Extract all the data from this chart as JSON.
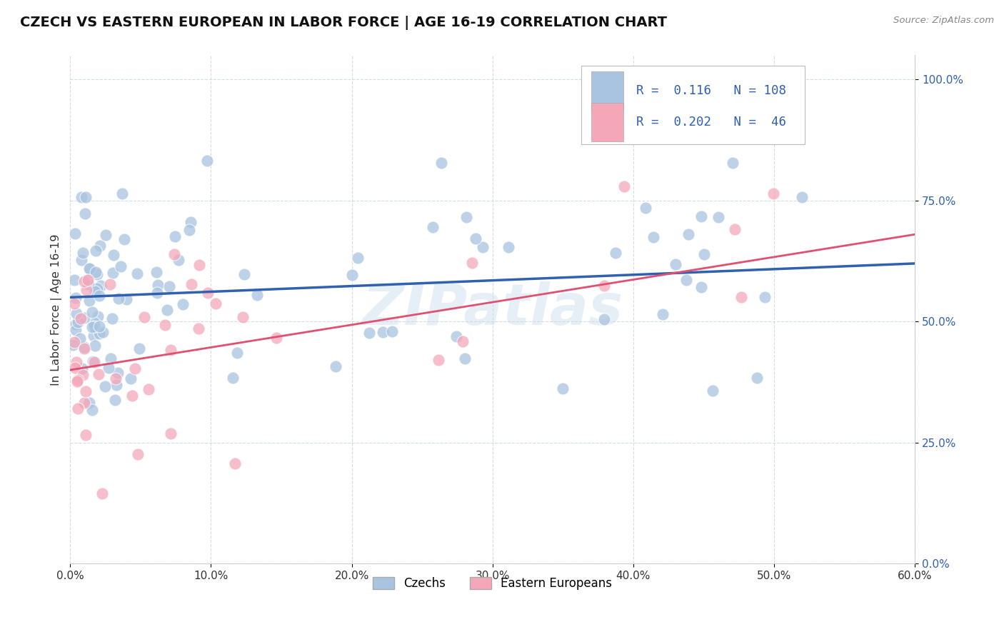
{
  "title": "CZECH VS EASTERN EUROPEAN IN LABOR FORCE | AGE 16-19 CORRELATION CHART",
  "source": "Source: ZipAtlas.com",
  "xlabel_vals": [
    0.0,
    10.0,
    20.0,
    30.0,
    40.0,
    50.0,
    60.0
  ],
  "ylabel_vals": [
    0.0,
    25.0,
    50.0,
    75.0,
    100.0
  ],
  "ylabel_label": "In Labor Force | Age 16-19",
  "xmin": 0.0,
  "xmax": 60.0,
  "ymin": 0.0,
  "ymax": 105.0,
  "r_czech": 0.116,
  "n_czech": 108,
  "r_eastern": 0.202,
  "n_eastern": 46,
  "color_czech": "#a8c4e0",
  "color_eastern": "#f4a7b9",
  "line_color_czech": "#3060b0",
  "line_color_eastern": "#e05070",
  "legend_label_czech": "Czechs",
  "legend_label_eastern": "Eastern Europeans",
  "watermark": "ZIPatlas",
  "background_color": "#ffffff",
  "czech_line_y0": 55.0,
  "czech_line_y1": 62.0,
  "eastern_line_y0": 40.0,
  "eastern_line_y1": 68.0
}
